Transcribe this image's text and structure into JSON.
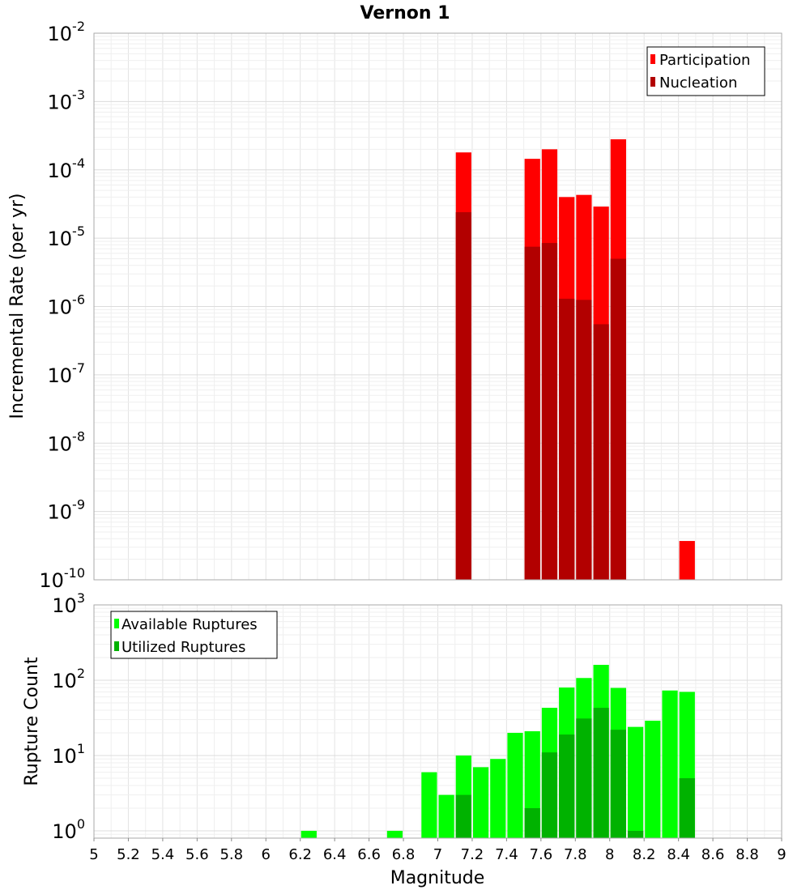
{
  "chart_data": [
    {
      "type": "bar",
      "title": "Vernon 1",
      "ylabel": "Incremental Rate (per yr)",
      "xlabel": "",
      "yscale": "log",
      "ylim": [
        1e-10,
        0.01
      ],
      "xlim": [
        5,
        9
      ],
      "bin_width": 0.1,
      "y_ticks": [
        {
          "base": "10",
          "exp": "-2"
        },
        {
          "base": "10",
          "exp": "-3"
        },
        {
          "base": "10",
          "exp": "-4"
        },
        {
          "base": "10",
          "exp": "-5"
        },
        {
          "base": "10",
          "exp": "-6"
        },
        {
          "base": "10",
          "exp": "-7"
        },
        {
          "base": "10",
          "exp": "-8"
        },
        {
          "base": "10",
          "exp": "-9"
        },
        {
          "base": "10",
          "exp": "-10"
        }
      ],
      "legend_position": "top-right",
      "series": [
        {
          "name": "Participation",
          "color": "#ff0000",
          "x": [
            7.15,
            7.55,
            7.65,
            7.75,
            7.85,
            7.95,
            8.05,
            8.45
          ],
          "values": [
            0.00018,
            0.000145,
            0.0002,
            4e-05,
            4.3e-05,
            2.9e-05,
            0.00028,
            3.7e-10
          ]
        },
        {
          "name": "Nucleation",
          "color": "#b20000",
          "x": [
            7.15,
            7.55,
            7.65,
            7.75,
            7.85,
            7.95,
            8.05
          ],
          "values": [
            2.4e-05,
            7.5e-06,
            8.5e-06,
            1.3e-06,
            1.25e-06,
            5.5e-07,
            5e-06
          ]
        }
      ]
    },
    {
      "type": "bar",
      "title": "",
      "ylabel": "Rupture Count",
      "xlabel": "Magnitude",
      "yscale": "log",
      "ylim": [
        0.8,
        1000
      ],
      "xlim": [
        5,
        9
      ],
      "bin_width": 0.1,
      "x_ticks": [
        "5",
        "5.2",
        "5.4",
        "5.6",
        "5.8",
        "6",
        "6.2",
        "6.4",
        "6.6",
        "6.8",
        "7",
        "7.2",
        "7.4",
        "7.6",
        "7.8",
        "8",
        "8.2",
        "8.4",
        "8.6",
        "8.8",
        "9"
      ],
      "y_ticks": [
        {
          "base": "10",
          "exp": "3"
        },
        {
          "base": "10",
          "exp": "2"
        },
        {
          "base": "10",
          "exp": "1"
        },
        {
          "base": "10",
          "exp": "0"
        }
      ],
      "legend_position": "top-left",
      "series": [
        {
          "name": "Available Ruptures",
          "color": "#00ff00",
          "x": [
            6.25,
            6.75,
            6.95,
            7.05,
            7.15,
            7.25,
            7.35,
            7.45,
            7.55,
            7.65,
            7.75,
            7.85,
            7.95,
            8.05,
            8.15,
            8.25,
            8.35,
            8.45
          ],
          "values": [
            1,
            1,
            6,
            3,
            10,
            7,
            9,
            20,
            21,
            43,
            80,
            107,
            160,
            79,
            24,
            29,
            73,
            70
          ]
        },
        {
          "name": "Utilized Ruptures",
          "color": "#00b200",
          "x": [
            7.15,
            7.55,
            7.65,
            7.75,
            7.85,
            7.95,
            8.05,
            8.15,
            8.45
          ],
          "values": [
            3,
            2,
            11,
            19,
            31,
            43,
            22,
            1,
            5
          ]
        }
      ]
    }
  ]
}
